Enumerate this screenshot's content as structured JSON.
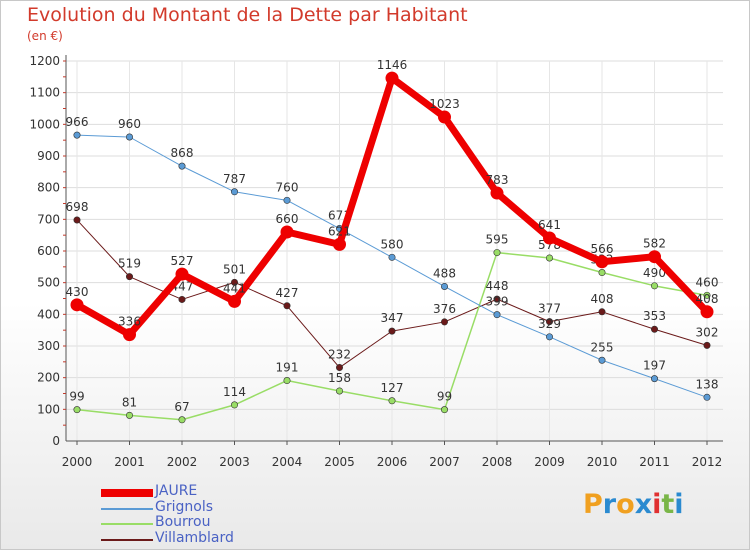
{
  "header": {
    "title": "Evolution du Montant de la Dette par Habitant",
    "subtitle": "(en €)"
  },
  "logo": {
    "letters": [
      "P",
      "r",
      "o",
      "x",
      "i",
      "t",
      "i"
    ],
    "colors": [
      "#f0a020",
      "#2a8ad0",
      "#f0a020",
      "#2a8ad0",
      "#e03030",
      "#7ab648",
      "#2a8ad0"
    ]
  },
  "chart_data": {
    "type": "line",
    "title": "Evolution du Montant de la Dette par Habitant",
    "ylabel": "(en €)",
    "x": [
      "2000",
      "2001",
      "2002",
      "2003",
      "2004",
      "2005",
      "2006",
      "2007",
      "2008",
      "2009",
      "2010",
      "2011",
      "2012"
    ],
    "ylim": [
      0,
      1200
    ],
    "yticks": [
      "0",
      "100",
      "200",
      "300",
      "400",
      "500",
      "600",
      "700",
      "800",
      "900",
      "1000",
      "1100",
      "1200"
    ],
    "ytick_values": [
      0,
      100,
      200,
      300,
      400,
      500,
      600,
      700,
      800,
      900,
      1000,
      1100,
      1200
    ],
    "grid": true,
    "legend": "bottom-left",
    "series": [
      {
        "name": "Villamblard",
        "color": "#6b1a1a",
        "width": 1,
        "values": [
          698,
          519,
          447,
          501,
          427,
          232,
          347,
          376,
          448,
          377,
          408,
          353,
          302
        ],
        "labels": [
          "698",
          "519",
          "447",
          "501",
          "427",
          "232",
          "347",
          "376",
          "448",
          "377",
          "408",
          "353",
          "302"
        ]
      },
      {
        "name": "Bourrou",
        "color": "#99dd66",
        "width": 1.5,
        "values": [
          99,
          81,
          67,
          114,
          191,
          158,
          127,
          99,
          595,
          578,
          532,
          490,
          460
        ],
        "labels": [
          "99",
          "81",
          "67",
          "114",
          "191",
          "158",
          "127",
          "99",
          "595",
          "578",
          "532",
          "490",
          "460"
        ]
      },
      {
        "name": "Grignols",
        "color": "#5b9bd5",
        "width": 1,
        "values": [
          966,
          960,
          868,
          787,
          760,
          671,
          580,
          488,
          399,
          329,
          255,
          197,
          138
        ],
        "labels": [
          "966",
          "960",
          "868",
          "787",
          "760",
          "671",
          "580",
          "488",
          "399",
          "329",
          "255",
          "197",
          "138"
        ]
      },
      {
        "name": "JAURE",
        "color": "#ee0000",
        "width": 7,
        "values": [
          430,
          336,
          527,
          441,
          660,
          621,
          1146,
          1023,
          783,
          641,
          566,
          582,
          408
        ],
        "labels": [
          "430",
          "336",
          "527",
          "441",
          "660",
          "621",
          "1146",
          "1023",
          "783",
          "641",
          "566",
          "582",
          "408"
        ]
      }
    ],
    "legend_order": [
      "JAURE",
      "Grignols",
      "Bourrou",
      "Villamblard"
    ]
  }
}
